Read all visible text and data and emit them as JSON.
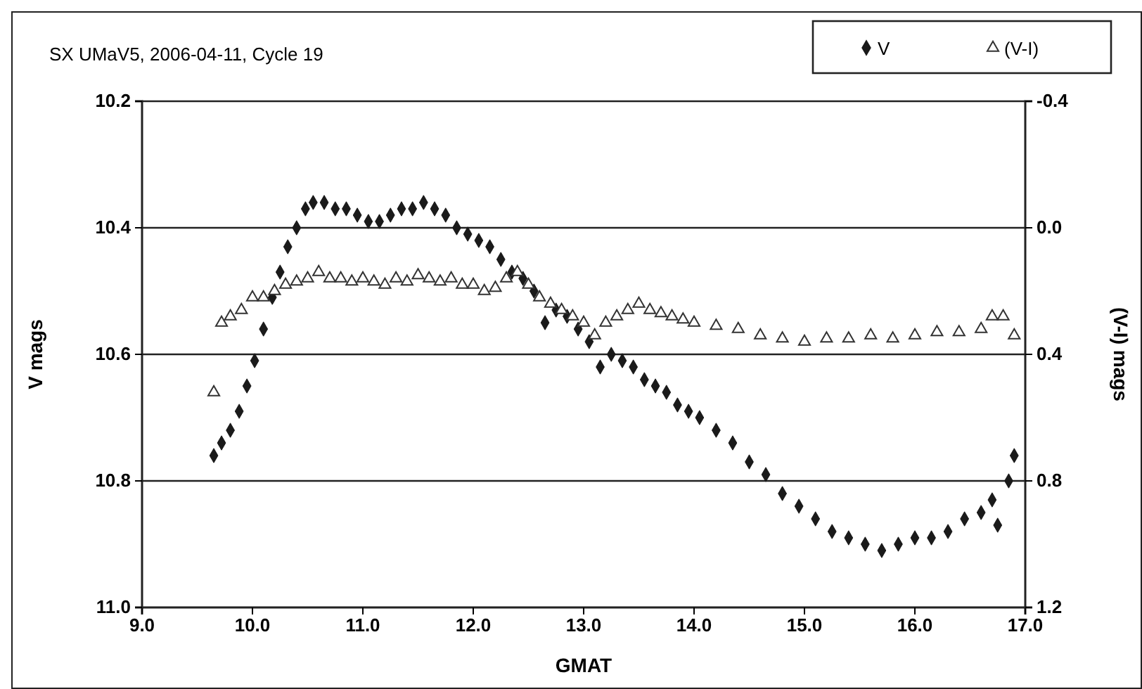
{
  "chart_data": {
    "type": "scatter",
    "title": "SX UMaV5, 2006-04-11, Cycle 19",
    "xlabel": "GMAT",
    "ylabel": "V mags",
    "y2label": "(V-I) mags",
    "xlim": [
      9,
      17
    ],
    "xticks": [
      {
        "value": 9,
        "label": "9.0"
      },
      {
        "value": 10,
        "label": "10.0"
      },
      {
        "value": 11,
        "label": "11.0"
      },
      {
        "value": 12,
        "label": "12.0"
      },
      {
        "value": 13,
        "label": "13.0"
      },
      {
        "value": 14,
        "label": "14.0"
      },
      {
        "value": 15,
        "label": "15.0"
      },
      {
        "value": 16,
        "label": "16.0"
      },
      {
        "value": 17,
        "label": "17.0"
      }
    ],
    "ylim": [
      11.0,
      10.2
    ],
    "yticks": [
      {
        "value": 10.2,
        "label": "10.2"
      },
      {
        "value": 10.4,
        "label": "10.4"
      },
      {
        "value": 10.6,
        "label": "10.6"
      },
      {
        "value": 10.8,
        "label": "10.8"
      },
      {
        "value": 11.0,
        "label": "11.0"
      }
    ],
    "y2lim": [
      1.2,
      -0.4
    ],
    "y2ticks": [
      -0.4,
      {
        "value": 0,
        "label": "0.0"
      },
      0.4,
      0.8,
      1.2
    ],
    "grid": "y",
    "legend": "top right",
    "series": [
      {
        "name": "V",
        "color": "#1a1a1a",
        "marker": "diamond",
        "x": [
          9.65,
          9.72,
          9.8,
          9.88,
          9.95,
          10.02,
          10.1,
          10.18,
          10.25,
          10.32,
          10.4,
          10.48,
          10.55,
          10.65,
          10.75,
          10.85,
          10.95,
          11.05,
          11.15,
          11.25,
          11.35,
          11.45,
          11.55,
          11.65,
          11.75,
          11.85,
          11.95,
          12.05,
          12.15,
          12.25,
          12.35,
          12.45,
          12.55,
          12.65,
          12.75,
          12.85,
          12.95,
          13.05,
          13.15,
          13.25,
          13.35,
          13.45,
          13.55,
          13.65,
          13.75,
          13.85,
          13.95,
          14.05,
          14.2,
          14.35,
          14.5,
          14.65,
          14.8,
          14.95,
          15.1,
          15.25,
          15.4,
          15.55,
          15.7,
          15.85,
          16.0,
          16.15,
          16.3,
          16.45,
          16.6,
          16.7,
          16.75,
          16.85,
          16.9
        ],
        "values": [
          10.76,
          10.74,
          10.72,
          10.69,
          10.65,
          10.61,
          10.56,
          10.51,
          10.47,
          10.43,
          10.4,
          10.37,
          10.36,
          10.36,
          10.37,
          10.37,
          10.38,
          10.39,
          10.39,
          10.38,
          10.37,
          10.37,
          10.36,
          10.37,
          10.38,
          10.4,
          10.41,
          10.42,
          10.43,
          10.45,
          10.47,
          10.48,
          10.5,
          10.55,
          10.53,
          10.54,
          10.56,
          10.58,
          10.62,
          10.6,
          10.61,
          10.62,
          10.64,
          10.65,
          10.66,
          10.68,
          10.69,
          10.7,
          10.72,
          10.74,
          10.77,
          10.79,
          10.82,
          10.84,
          10.86,
          10.88,
          10.89,
          10.9,
          10.91,
          10.9,
          10.89,
          10.89,
          10.88,
          10.86,
          10.85,
          10.83,
          10.87,
          10.8,
          10.76
        ]
      },
      {
        "name": "(V-I)",
        "color": "#333333",
        "marker": "triangle",
        "axis": "y2",
        "x": [
          9.65,
          9.72,
          9.8,
          9.9,
          10.0,
          10.1,
          10.2,
          10.3,
          10.4,
          10.5,
          10.6,
          10.7,
          10.8,
          10.9,
          11.0,
          11.1,
          11.2,
          11.3,
          11.4,
          11.5,
          11.6,
          11.7,
          11.8,
          11.9,
          12.0,
          12.1,
          12.2,
          12.3,
          12.4,
          12.5,
          12.6,
          12.7,
          12.8,
          12.9,
          13.0,
          13.1,
          13.2,
          13.3,
          13.4,
          13.5,
          13.6,
          13.7,
          13.8,
          13.9,
          14.0,
          14.2,
          14.4,
          14.6,
          14.8,
          15.0,
          15.2,
          15.4,
          15.6,
          15.8,
          16.0,
          16.2,
          16.4,
          16.6,
          16.7,
          16.8,
          16.9
        ],
        "values": [
          0.52,
          0.3,
          0.28,
          0.26,
          0.22,
          0.22,
          0.2,
          0.18,
          0.17,
          0.16,
          0.14,
          0.16,
          0.16,
          0.17,
          0.16,
          0.17,
          0.18,
          0.16,
          0.17,
          0.15,
          0.16,
          0.17,
          0.16,
          0.18,
          0.18,
          0.2,
          0.19,
          0.16,
          0.14,
          0.18,
          0.22,
          0.24,
          0.26,
          0.28,
          0.3,
          0.34,
          0.3,
          0.28,
          0.26,
          0.24,
          0.26,
          0.27,
          0.28,
          0.29,
          0.3,
          0.31,
          0.32,
          0.34,
          0.35,
          0.36,
          0.35,
          0.35,
          0.34,
          0.35,
          0.34,
          0.33,
          0.33,
          0.32,
          0.28,
          0.28,
          0.34
        ]
      }
    ]
  }
}
